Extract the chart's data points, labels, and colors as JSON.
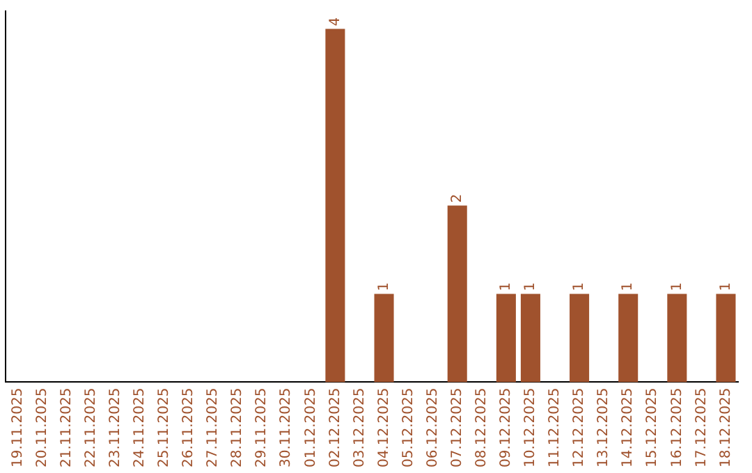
{
  "chart_data": {
    "type": "bar",
    "categories": [
      "19.11.2025",
      "20.11.2025",
      "21.11.2025",
      "22.11.2025",
      "23.11.2025",
      "24.11.2025",
      "25.11.2025",
      "26.11.2025",
      "27.11.2025",
      "28.11.2025",
      "29.11.2025",
      "30.11.2025",
      "01.12.2025",
      "02.12.2025",
      "03.12.2025",
      "04.12.2025",
      "05.12.2025",
      "06.12.2025",
      "07.12.2025",
      "08.12.2025",
      "09.12.2025",
      "10.12.2025",
      "11.12.2025",
      "12.12.2025",
      "13.12.2025",
      "14.12.2025",
      "15.12.2025",
      "16.12.2025",
      "17.12.2025",
      "18.12.2025"
    ],
    "values": [
      null,
      null,
      null,
      null,
      null,
      null,
      null,
      null,
      null,
      null,
      null,
      null,
      null,
      4,
      null,
      1,
      null,
      null,
      2,
      null,
      1,
      1,
      null,
      1,
      null,
      1,
      null,
      1,
      null,
      1
    ],
    "data_labels": true,
    "color": "#a0522d",
    "ylim": [
      0,
      4.2
    ],
    "tick_labels": "x",
    "grid": false,
    "legend": false
  }
}
